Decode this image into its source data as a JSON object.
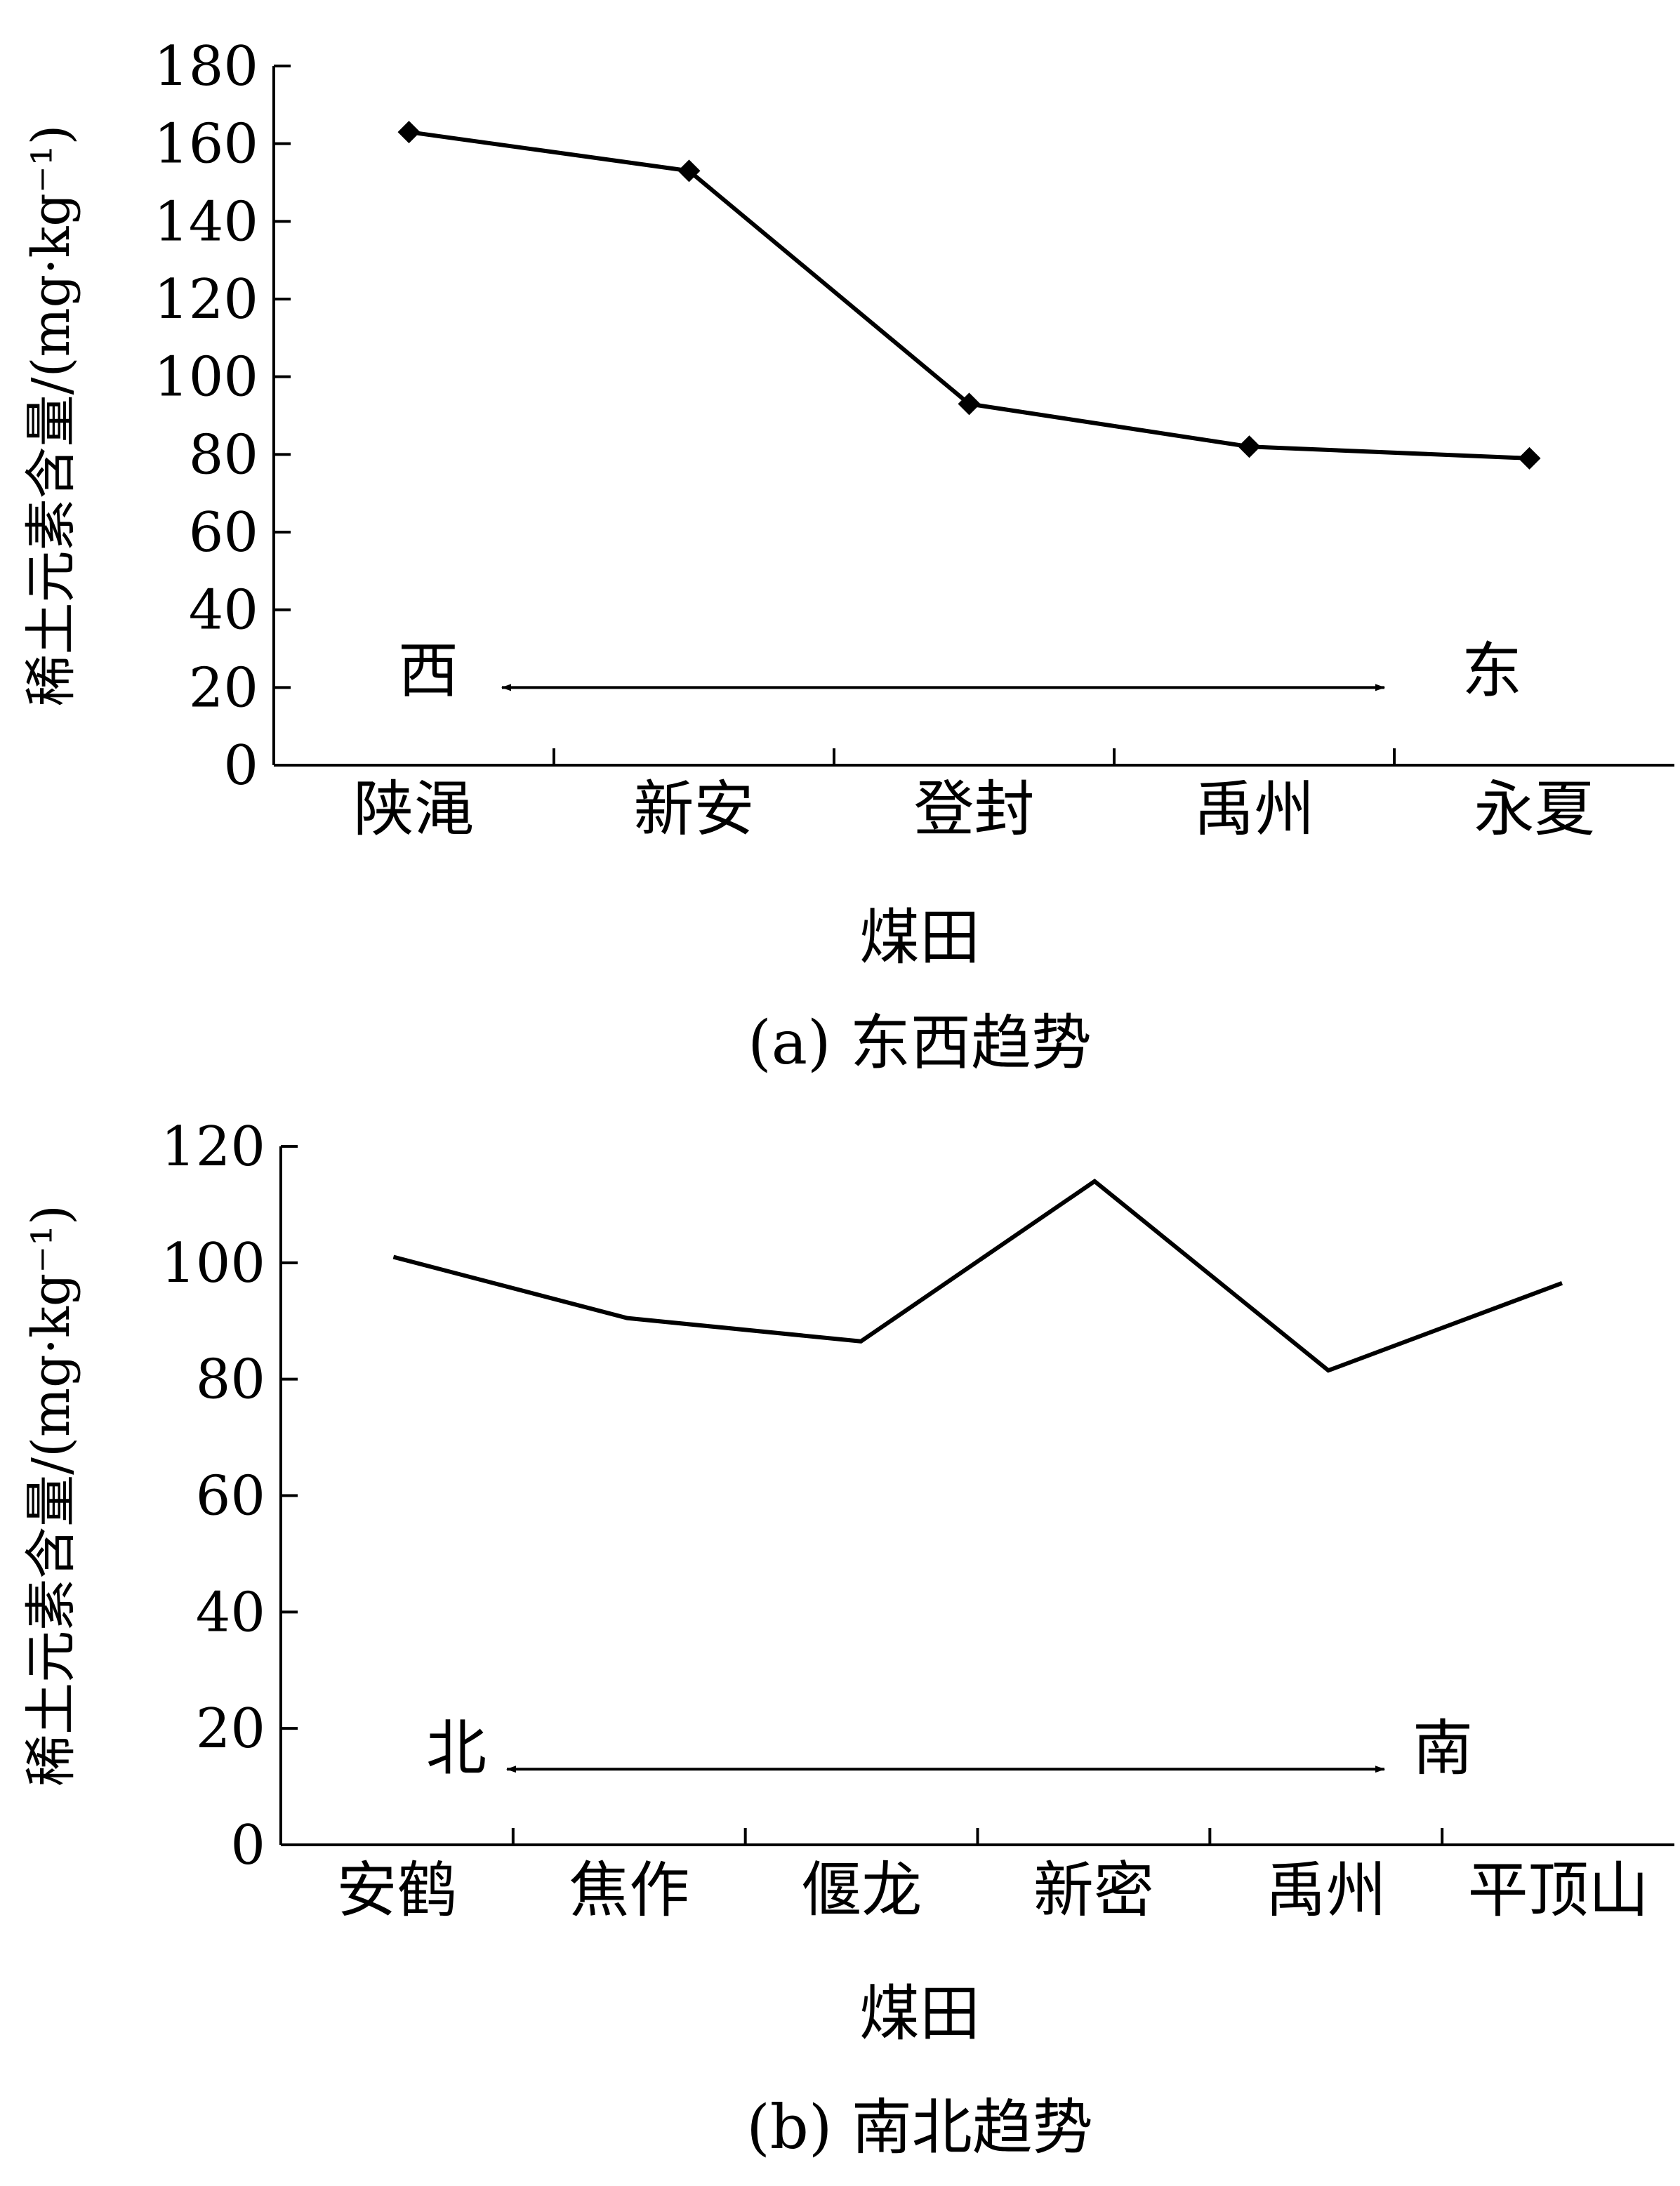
{
  "chart_data": [
    {
      "type": "line",
      "caption": "(a) 东西趋势",
      "xlabel": "煤田",
      "ylabel": "稀土元素含量/(mg·kg⁻¹)",
      "ylim": [
        0,
        180
      ],
      "yticks": [
        0,
        20,
        40,
        60,
        80,
        100,
        120,
        140,
        160,
        180
      ],
      "categories": [
        "陕渑",
        "新安",
        "登封",
        "禹州",
        "永夏"
      ],
      "series": [
        {
          "values": [
            163,
            153,
            93,
            82,
            79
          ],
          "marker": "diamond",
          "color": "#000000"
        }
      ],
      "direction": {
        "left": "西",
        "right": "东",
        "y": 20
      }
    },
    {
      "type": "line",
      "caption": "(b) 南北趋势",
      "xlabel": "煤田",
      "ylabel": "稀土元素含量/(mg·kg⁻¹)",
      "ylim": [
        0,
        120
      ],
      "yticks": [
        0,
        20,
        40,
        60,
        80,
        100,
        120
      ],
      "categories": [
        "安鹤",
        "焦作",
        "偃龙",
        "新密",
        "禹州",
        "平顶山"
      ],
      "series": [
        {
          "values": [
            101,
            90.5,
            86.5,
            114,
            81.5,
            96.5
          ],
          "marker": "none",
          "color": "#000000"
        }
      ],
      "direction": {
        "left": "北",
        "right": "南",
        "y": 13
      }
    }
  ]
}
